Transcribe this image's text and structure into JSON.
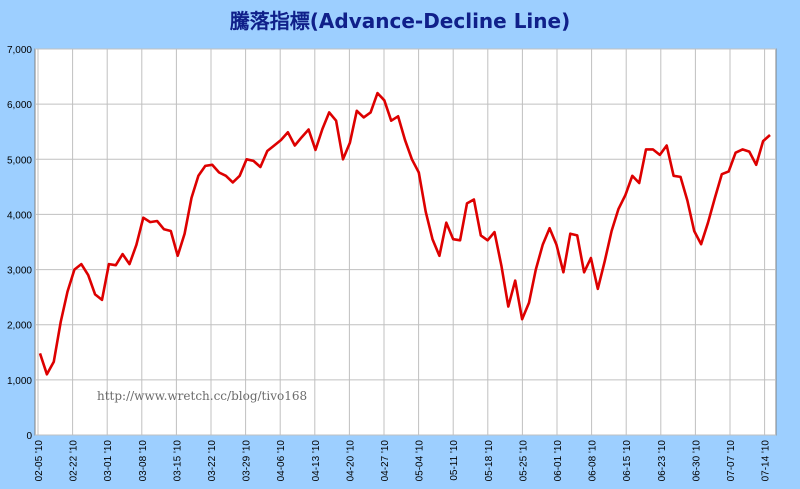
{
  "chart_data": {
    "type": "line",
    "title": "騰落指標(Advance-Decline Line)",
    "watermark": "http://www.wretch.cc/blog/tivo168",
    "ylim": [
      0,
      7000
    ],
    "yticks": [
      "0",
      "1,000",
      "2,000",
      "3,000",
      "4,000",
      "5,000",
      "6,000",
      "7,000"
    ],
    "xtick_labels": [
      "02-05 '10",
      "02-22 '10",
      "03-01 '10",
      "03-08 '10",
      "03-15 '10",
      "03-22 '10",
      "03-29 '10",
      "04-06 '10",
      "04-13 '10",
      "04-20 '10",
      "04-27 '10",
      "05-04 '10",
      "05-11 '10",
      "05-18 '10",
      "05-25 '10",
      "06-01 '10",
      "06-08 '10",
      "06-15 '10",
      "06-23 '10",
      "06-30 '10",
      "07-07 '10",
      "07-14 '10"
    ],
    "grid": true,
    "line_color": "#dd0000",
    "series": [
      {
        "values": [
          1480,
          1100,
          1330,
          2050,
          2600,
          3000,
          3100,
          2900,
          2550,
          2450,
          3100,
          3080,
          3280,
          3100,
          3450,
          3940,
          3860,
          3880,
          3730,
          3700,
          3250,
          3650,
          4300,
          4700,
          4880,
          4900,
          4760,
          4700,
          4580,
          4700,
          5000,
          4970,
          4860,
          5150,
          5250,
          5350,
          5490,
          5250,
          5400,
          5540,
          5170,
          5550,
          5850,
          5700,
          5000,
          5300,
          5880,
          5760,
          5850,
          6200,
          6070,
          5700,
          5780,
          5350,
          5000,
          4760,
          4050,
          3550,
          3250,
          3850,
          3550,
          3530,
          4200,
          4270,
          3620,
          3530,
          3680,
          3070,
          2330,
          2800,
          2100,
          2400,
          3000,
          3450,
          3750,
          3450,
          2950,
          3650,
          3620,
          2950,
          3210,
          2650,
          3150,
          3700,
          4100,
          4350,
          4700,
          4570,
          5180,
          5180,
          5080,
          5250,
          4700,
          4680,
          4250,
          3700,
          3460,
          3850,
          4300,
          4730,
          4780,
          5120,
          5180,
          5140,
          4900,
          5330,
          5440
        ]
      }
    ]
  }
}
